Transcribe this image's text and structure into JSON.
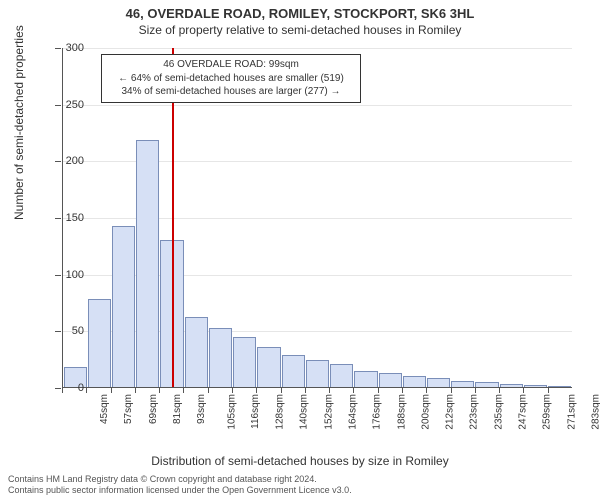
{
  "title": "46, OVERDALE ROAD, ROMILEY, STOCKPORT, SK6 3HL",
  "subtitle": "Size of property relative to semi-detached houses in Romiley",
  "y_axis_label": "Number of semi-detached properties",
  "x_axis_label": "Distribution of semi-detached houses by size in Romiley",
  "footer_line1": "Contains HM Land Registry data © Crown copyright and database right 2024.",
  "footer_line2": "Contains public sector information licensed under the Open Government Licence v3.0.",
  "annotation": {
    "line1": "46 OVERDALE ROAD: 99sqm",
    "line2": "← 64% of semi-detached houses are smaller (519)",
    "line3": "34% of semi-detached houses are larger (277) →"
  },
  "chart": {
    "type": "histogram",
    "ylim": [
      0,
      300
    ],
    "ytick_step": 50,
    "yticks": [
      0,
      50,
      100,
      150,
      200,
      250,
      300
    ],
    "bar_fill": "#d6e0f5",
    "bar_stroke": "#7a8eb8",
    "grid_color": "#e6e6e6",
    "background_color": "#ffffff",
    "marker_value": 99,
    "marker_color": "#cc0000",
    "x_start": 45,
    "x_step": 12,
    "x_labels_shown": [
      "45sqm",
      "57sqm",
      "69sqm",
      "81sqm",
      "93sqm",
      "105sqm",
      "116sqm",
      "128sqm",
      "140sqm",
      "152sqm",
      "164sqm",
      "176sqm",
      "188sqm",
      "200sqm",
      "212sqm",
      "223sqm",
      "235sqm",
      "247sqm",
      "259sqm",
      "271sqm",
      "283sqm"
    ],
    "values": [
      18,
      78,
      142,
      218,
      130,
      62,
      52,
      44,
      35,
      28,
      24,
      20,
      14,
      12,
      10,
      8,
      5,
      4,
      3,
      2,
      1
    ]
  }
}
